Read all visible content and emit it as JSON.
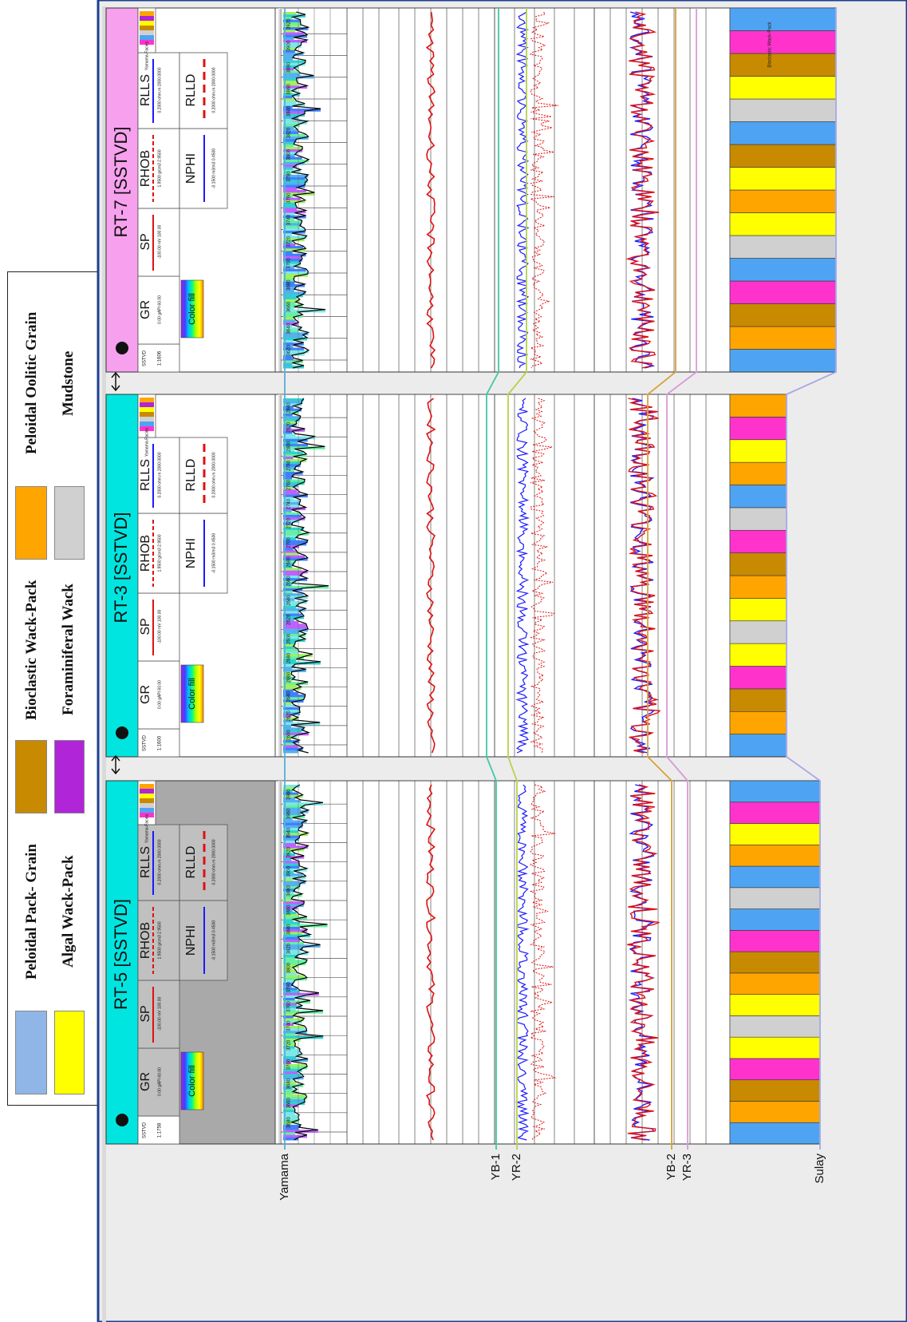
{
  "legend": {
    "items": [
      {
        "label": "Peloidal Pack- Grain",
        "color": "#8fb6e6"
      },
      {
        "label": "Algal Wack-Pack",
        "color": "#ffff00"
      },
      {
        "label": "Bioclastic Wack-Pack",
        "color": "#c88a00"
      },
      {
        "label": "Foraminiferal Wack",
        "color": "#b025d8"
      },
      {
        "label": "Peloidal Oolitic Grain",
        "color": "#ffa500"
      },
      {
        "label": "Mudstone",
        "color": "#d0d0d0"
      }
    ]
  },
  "wells": [
    {
      "name": "RT-5 [SSTVD]",
      "header_color": "#00e5e0",
      "depth_scale": "1:1758",
      "depth_ticks": [
        "3680",
        "3660",
        "3680",
        "3700",
        "3720",
        "3740",
        "3760",
        "3780",
        "3800",
        "3820",
        "3840",
        "3860",
        "3880",
        "3900",
        "3920",
        "3940",
        "3960",
        "3980"
      ]
    },
    {
      "name": "RT-3 [SSTVD]",
      "header_color": "#00e5e0",
      "depth_scale": "1:1600",
      "depth_ticks": [
        "2600",
        "2620",
        "2640",
        "2660",
        "2680",
        "2600",
        "2620",
        "2640",
        "2660",
        "2680",
        "2700",
        "2720",
        "2740",
        "2760",
        "2780",
        "2800",
        "2820",
        "2840"
      ]
    },
    {
      "name": "RT-7 [SSTVD]",
      "header_color": "#f7a1ee",
      "depth_scale": "1:1606",
      "depth_ticks": [
        "3620",
        "3640",
        "3660",
        "3680",
        "3700",
        "3720",
        "3740",
        "3760",
        "3780",
        "3800",
        "3820",
        "3840",
        "3860",
        "3880",
        "3900",
        "3920"
      ]
    }
  ],
  "track_headers": {
    "depth": "SSTVD",
    "gr": "GR",
    "gr_scale": "0.00 gAPI 60.00",
    "gr_fill": "Color fill",
    "sp": "SP",
    "sp_scale": "-100.00 mV 100.00",
    "rhob": "RHOB",
    "rhob_scale": "1.9500 g/cm3 2.9500",
    "nphi": "NPHI",
    "nphi_scale": "-0.1500 m3/m3 0.4500",
    "rlls": "RLLS",
    "rlls_scale": "0.2000 ohm.m 2000.0000",
    "rlld": "RLLD",
    "rlld_scale": "0.2000 ohm.m 2000.0000",
    "facies": "Yamama-Facies",
    "facies_band_label": "Bioclastic Wack-Pack"
  },
  "horizons": [
    {
      "name": "Yamama",
      "color": "#5aaed8"
    },
    {
      "name": "YB-1",
      "color": "#3fc9a5"
    },
    {
      "name": "YR-2",
      "color": "#b6d24a"
    },
    {
      "name": "YB-2",
      "color": "#d7a23a"
    },
    {
      "name": "YR-3",
      "color": "#d99ad8"
    },
    {
      "name": "Sulay",
      "color": "#a8a8e6"
    }
  ],
  "curve_colors": {
    "gr": "#000000",
    "sp": "#e01010",
    "rhob": "#e01010",
    "nphi": "#1a1aff",
    "rlls": "#1a1aff",
    "rlld": "#e01010"
  }
}
